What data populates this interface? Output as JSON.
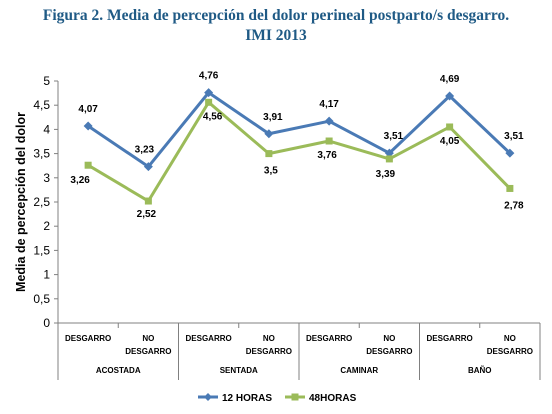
{
  "chart_data": {
    "type": "line",
    "title_line1": "Figura 2. Media de percepción del dolor perineal  postparto/s desgarro.",
    "title_line2": "IMI 2013",
    "ylabel": "Media de percepción del dolor",
    "ylim": [
      0,
      5
    ],
    "yticks": [
      "0",
      "0,5",
      "1",
      "1,5",
      "2",
      "2,5",
      "3",
      "3,5",
      "4",
      "4,5",
      "5"
    ],
    "categories": [
      {
        "line1": "DESGARRO",
        "line2": ""
      },
      {
        "line1": "NO",
        "line2": "DESGARRO"
      },
      {
        "line1": "DESGARRO",
        "line2": ""
      },
      {
        "line1": "NO",
        "line2": "DESGARRO"
      },
      {
        "line1": "DESGARRO",
        "line2": ""
      },
      {
        "line1": "NO",
        "line2": "DESGARRO"
      },
      {
        "line1": "DESGARRO",
        "line2": ""
      },
      {
        "line1": "NO",
        "line2": "DESGARRO"
      }
    ],
    "groups": [
      "ACOSTADA",
      "SENTADA",
      "CAMINAR",
      "BAÑO"
    ],
    "series": [
      {
        "name": "12 HORAS",
        "color": "#4a7ab5",
        "marker": "diamond",
        "values": [
          4.07,
          3.23,
          4.76,
          3.91,
          4.17,
          3.51,
          4.69,
          3.51
        ],
        "labels": [
          "4,07",
          "3,23",
          "4,76",
          "3,91",
          "4,17",
          "3,51",
          "4,69",
          "3,51"
        ]
      },
      {
        "name": "48HORAS",
        "color": "#9bbb59",
        "marker": "square",
        "values": [
          3.26,
          2.52,
          4.56,
          3.5,
          3.76,
          3.39,
          4.05,
          2.78
        ],
        "labels": [
          "3,26",
          "2,52",
          "4,56",
          "3,5",
          "3,76",
          "3,39",
          "4,05",
          "2,78"
        ]
      }
    ],
    "legend_position": "bottom",
    "grid": false
  }
}
